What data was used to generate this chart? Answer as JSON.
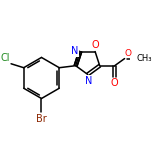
{
  "background_color": "#ffffff",
  "bond_color": "#000000",
  "atom_colors": {
    "C": "#000000",
    "N": "#0000ff",
    "O": "#ff0000",
    "Br": "#8b2500",
    "Cl": "#228B22"
  },
  "figure_size": [
    1.52,
    1.52
  ],
  "dpi": 100,
  "bond_width": 1.1,
  "font_size": 7.0
}
